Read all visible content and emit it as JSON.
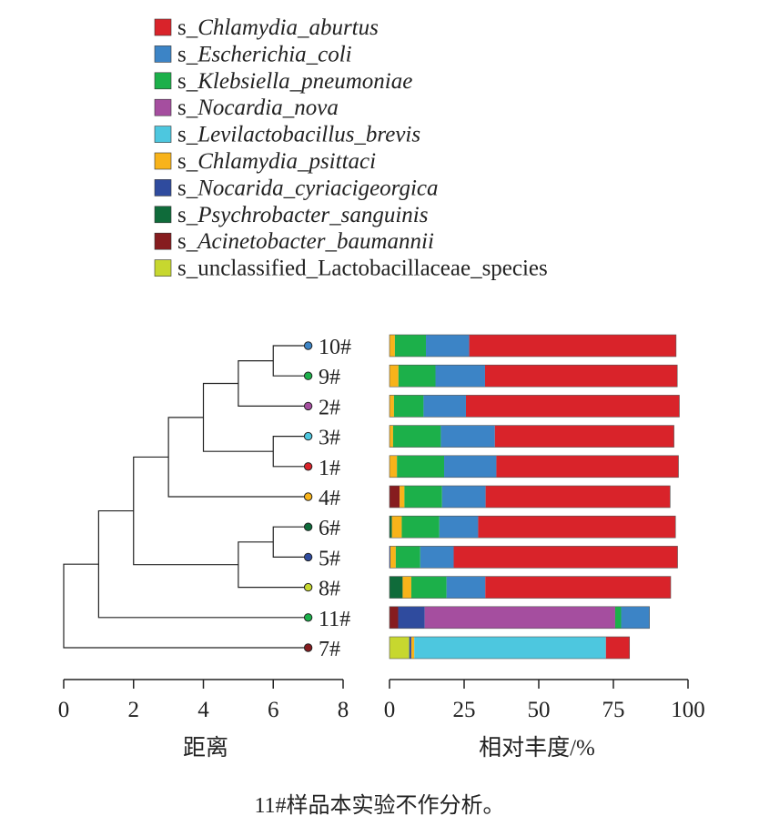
{
  "chart_data": {
    "type": "bar",
    "orientation": "horizontal",
    "stacked": true,
    "legend": {
      "position": "top",
      "entries": [
        {
          "prefix": "s_",
          "name": "Chlamydia_aburtus",
          "italic": true,
          "color": "#d9232a"
        },
        {
          "prefix": "s_",
          "name": "Escherichia_coli",
          "italic": true,
          "color": "#3c84c6"
        },
        {
          "prefix": "s_",
          "name": "Klebsiella_pneumoniae",
          "italic": true,
          "color": "#1cb04a"
        },
        {
          "prefix": "s_",
          "name": "Nocardia_nova",
          "italic": true,
          "color": "#a54e9f"
        },
        {
          "prefix": "s_",
          "name": "Levilactobacillus_brevis",
          "italic": true,
          "color": "#4dc7df"
        },
        {
          "prefix": "s_",
          "name": "Chlamydia_psittaci",
          "italic": true,
          "color": "#f8b31a"
        },
        {
          "prefix": "s_",
          "name": "Nocarida_cyriacigeorgica",
          "italic": true,
          "color": "#2f4b9e"
        },
        {
          "prefix": "s_",
          "name": "Psychrobacter_sanguinis",
          "italic": true,
          "color": "#0f6b3a"
        },
        {
          "prefix": "s_",
          "name": "Acinetobacter_baumannii",
          "italic": true,
          "color": "#861c1f"
        },
        {
          "prefix": "s_",
          "name": "unclassified_Lactobacillaceae_species",
          "italic": false,
          "color": "#c7d72f"
        }
      ]
    },
    "stack_order": [
      9,
      8,
      7,
      6,
      5,
      3,
      4,
      2,
      1,
      0
    ],
    "samples": [
      {
        "label": "10#",
        "dot_color": "#3c84c6",
        "values": [
          69.3,
          14.5,
          10.4,
          0,
          0,
          1.8,
          0,
          0,
          0,
          0
        ]
      },
      {
        "label": "9#",
        "dot_color": "#1cb04a",
        "values": [
          64.4,
          16.6,
          12.4,
          0,
          0,
          3.0,
          0,
          0,
          0,
          0
        ]
      },
      {
        "label": "2#",
        "dot_color": "#a54e9f",
        "values": [
          71.5,
          14.2,
          9.9,
          0,
          0,
          1.5,
          0,
          0,
          0,
          0
        ]
      },
      {
        "label": "3#",
        "dot_color": "#4dc7df",
        "values": [
          60.0,
          18.1,
          16.0,
          0,
          0,
          1.2,
          0,
          0,
          0,
          0
        ]
      },
      {
        "label": "1#",
        "dot_color": "#d9232a",
        "values": [
          61.0,
          17.5,
          15.8,
          0,
          0,
          2.5,
          0,
          0,
          0,
          0
        ]
      },
      {
        "label": "4#",
        "dot_color": "#f8b31a",
        "values": [
          61.8,
          14.6,
          12.6,
          0,
          0,
          1.6,
          0,
          0,
          3.4,
          0
        ]
      },
      {
        "label": "6#",
        "dot_color": "#0f6b3a",
        "values": [
          66.1,
          13.0,
          12.6,
          0,
          0,
          3.3,
          0,
          0.8,
          0,
          0
        ]
      },
      {
        "label": "5#",
        "dot_color": "#2f4b9e",
        "values": [
          75.0,
          11.2,
          8.2,
          0,
          0,
          1.8,
          0.3,
          0,
          0,
          0
        ]
      },
      {
        "label": "8#",
        "dot_color": "#c7d72f",
        "values": [
          62.1,
          13.0,
          11.8,
          0,
          0,
          2.9,
          0,
          4.4,
          0,
          0
        ]
      },
      {
        "label": "11#",
        "dot_color": "#1cb04a",
        "values": [
          0,
          9.5,
          2.0,
          63.8,
          0,
          0,
          8.9,
          0,
          2.9,
          0
        ]
      },
      {
        "label": "7#",
        "dot_color": "#861c1f",
        "values": [
          7.9,
          0,
          0,
          0,
          64.2,
          1.0,
          0.7,
          0,
          0,
          6.6
        ]
      }
    ],
    "bar_axis": {
      "title": "相对丰度/%",
      "range": [
        0,
        100
      ],
      "ticks": [
        0,
        25,
        50,
        75,
        100
      ]
    },
    "dendrogram_axis": {
      "title": "距离",
      "range": [
        0,
        8
      ],
      "ticks": [
        0,
        2,
        4,
        6,
        8
      ],
      "reversed": true
    },
    "dendrogram": {
      "leaf_distance": 7,
      "merges": [
        {
          "a": "L0",
          "b": "L1",
          "height": 6
        },
        {
          "a": "M0",
          "b": "L2",
          "height": 5
        },
        {
          "a": "L3",
          "b": "L4",
          "height": 6
        },
        {
          "a": "M1",
          "b": "M2",
          "height": 4
        },
        {
          "a": "M3",
          "b": "L5",
          "height": 3
        },
        {
          "a": "L6",
          "b": "L7",
          "height": 6
        },
        {
          "a": "M5",
          "b": "L8",
          "height": 5
        },
        {
          "a": "M4",
          "b": "M6",
          "height": 2
        },
        {
          "a": "M7",
          "b": "L9",
          "height": 1
        },
        {
          "a": "M8",
          "b": "L10",
          "height": 0
        }
      ]
    }
  },
  "caption": "11#样品本实验不作分析。"
}
